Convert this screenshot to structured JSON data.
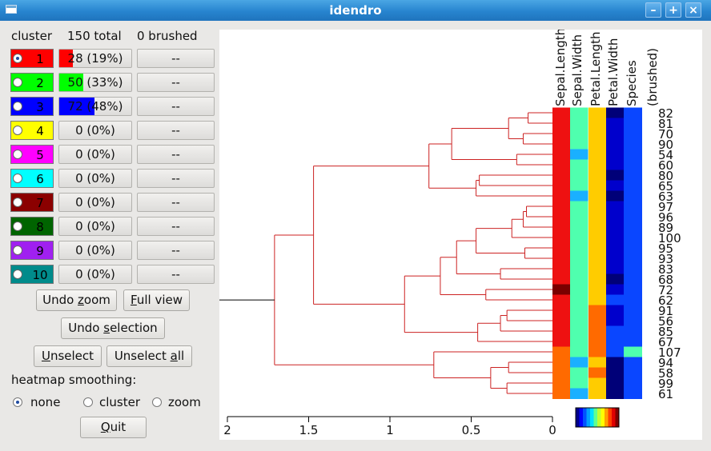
{
  "window": {
    "title": "idendro",
    "buttons": [
      "–",
      "+",
      "×"
    ]
  },
  "header": {
    "cluster": "cluster",
    "total": "150 total",
    "brushed": "0 brushed"
  },
  "clusters": [
    {
      "num": "1",
      "color": "#ff0000",
      "count": "28 (19%)",
      "fraction": 0.19,
      "brushed": "--",
      "selected": true
    },
    {
      "num": "2",
      "color": "#00ff00",
      "count": "50 (33%)",
      "fraction": 0.33,
      "brushed": "--",
      "selected": false
    },
    {
      "num": "3",
      "color": "#0000ff",
      "count": "72 (48%)",
      "fraction": 0.48,
      "brushed": "--",
      "selected": false
    },
    {
      "num": "4",
      "color": "#ffff00",
      "count": "0 (0%)",
      "fraction": 0,
      "brushed": "--",
      "selected": false
    },
    {
      "num": "5",
      "color": "#ff00ff",
      "count": "0 (0%)",
      "fraction": 0,
      "brushed": "--",
      "selected": false
    },
    {
      "num": "6",
      "color": "#00ffff",
      "count": "0 (0%)",
      "fraction": 0,
      "brushed": "--",
      "selected": false
    },
    {
      "num": "7",
      "color": "#8b0000",
      "count": "0 (0%)",
      "fraction": 0,
      "brushed": "--",
      "selected": false
    },
    {
      "num": "8",
      "color": "#006400",
      "count": "0 (0%)",
      "fraction": 0,
      "brushed": "--",
      "selected": false
    },
    {
      "num": "9",
      "color": "#a020f0",
      "count": "0 (0%)",
      "fraction": 0,
      "brushed": "--",
      "selected": false
    },
    {
      "num": "10",
      "color": "#008b8b",
      "count": "0 (0%)",
      "fraction": 0,
      "brushed": "--",
      "selected": false
    }
  ],
  "buttons": {
    "undo_zoom": {
      "pre": "Undo ",
      "key": "z",
      "post": "oom"
    },
    "full_view": {
      "pre": "",
      "key": "F",
      "post": "ull view"
    },
    "undo_selection": {
      "pre": "Undo ",
      "key": "s",
      "post": "election"
    },
    "unselect": {
      "pre": "",
      "key": "U",
      "post": "nselect"
    },
    "unselect_all": {
      "pre": "Unselect ",
      "key": "a",
      "post": "ll"
    },
    "quit": {
      "pre": "",
      "key": "Q",
      "post": "uit"
    }
  },
  "smoothing": {
    "label": "heatmap smoothing:",
    "options": [
      "none",
      "cluster",
      "zoom"
    ],
    "selected": "none"
  },
  "heatmap": {
    "columns": [
      "Sepal.Length",
      "Sepal.Width",
      "Petal.Length",
      "Petal.Width",
      "Species",
      "(brushed)"
    ],
    "leaf_labels": [
      "82",
      "81",
      "70",
      "90",
      "54",
      "60",
      "80",
      "65",
      "63",
      "97",
      "96",
      "89",
      "100",
      "95",
      "93",
      "83",
      "68",
      "72",
      "62",
      "91",
      "56",
      "85",
      "67",
      "107",
      "94",
      "58",
      "99",
      "61"
    ]
  },
  "axis": {
    "ticks": [
      "2",
      "1.5",
      "1",
      "0.5",
      "0"
    ],
    "tick_values": [
      2,
      1.5,
      1,
      0.5,
      0
    ]
  },
  "colors": {
    "branch": "#cc2222",
    "root_line": "#000000"
  }
}
